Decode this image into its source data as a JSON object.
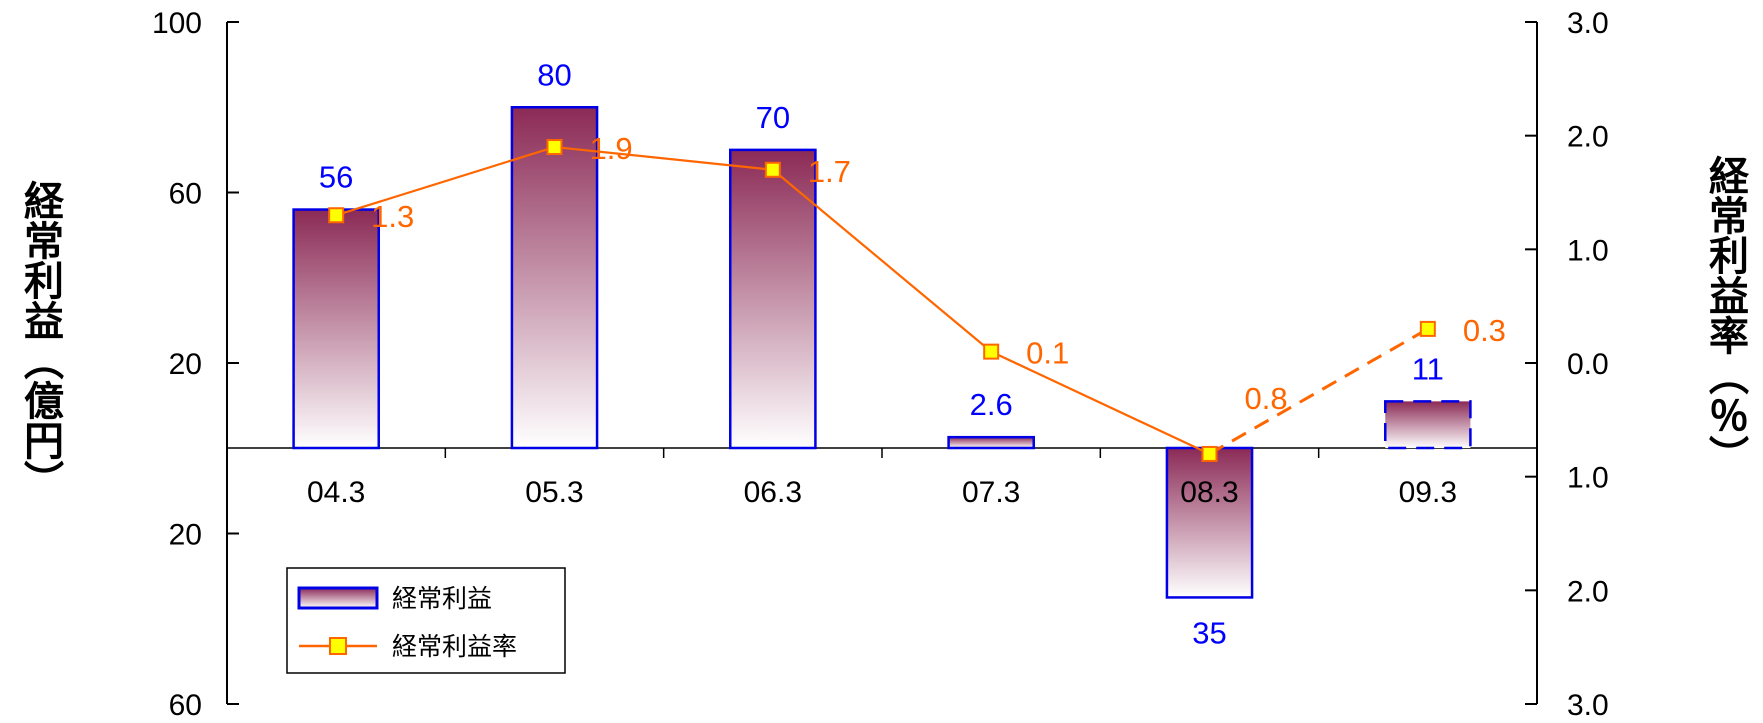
{
  "chart_data": {
    "type": "bar",
    "categories": [
      "04.3",
      "05.3",
      "06.3",
      "07.3",
      "08.3",
      "09.3"
    ],
    "series": [
      {
        "name": "経常利益",
        "type": "bar",
        "axis": "left",
        "values": [
          56,
          80,
          70,
          2.6,
          -35,
          11
        ],
        "labels": [
          "56",
          "80",
          "70",
          "2.6",
          "35",
          "11"
        ],
        "forecast_last": true
      },
      {
        "name": "経常利益率",
        "type": "line",
        "axis": "right",
        "values": [
          1.3,
          1.9,
          1.7,
          0.1,
          -0.8,
          0.3
        ],
        "labels": [
          "1.3",
          "1.9",
          "1.7",
          "0.1",
          "0.8",
          "0.3"
        ],
        "forecast_last": true
      }
    ],
    "left_axis": {
      "title": "経常利益（億円）",
      "ticks": [
        {
          "value": 100,
          "label": "100"
        },
        {
          "value": 60,
          "label": "60"
        },
        {
          "value": 20,
          "label": "20"
        },
        {
          "value": -20,
          "label": "20"
        },
        {
          "value": -60,
          "label": "60"
        }
      ],
      "range": [
        -60,
        100
      ]
    },
    "right_axis": {
      "title": "経常利益率（％）",
      "ticks": [
        {
          "value": 3,
          "label": "3.0"
        },
        {
          "value": 2,
          "label": "2.0"
        },
        {
          "value": 1,
          "label": "1.0"
        },
        {
          "value": 0,
          "label": "0.0"
        },
        {
          "value": -1,
          "label": "1.0"
        },
        {
          "value": -2,
          "label": "2.0"
        },
        {
          "value": -3,
          "label": "3.0"
        }
      ],
      "range": [
        -3,
        3
      ]
    },
    "legend": {
      "placement": "bottom-left",
      "entries": [
        "経常利益",
        "経常利益率"
      ]
    },
    "colors": {
      "bar_border": "#0000e6",
      "bar_top": "#8b2a56",
      "bar_bottom": "#ffffff",
      "line": "#ff6600",
      "marker_fill": "#ffff00",
      "bar_label": "#0000ff",
      "line_label": "#ff6600"
    },
    "grid": false
  }
}
